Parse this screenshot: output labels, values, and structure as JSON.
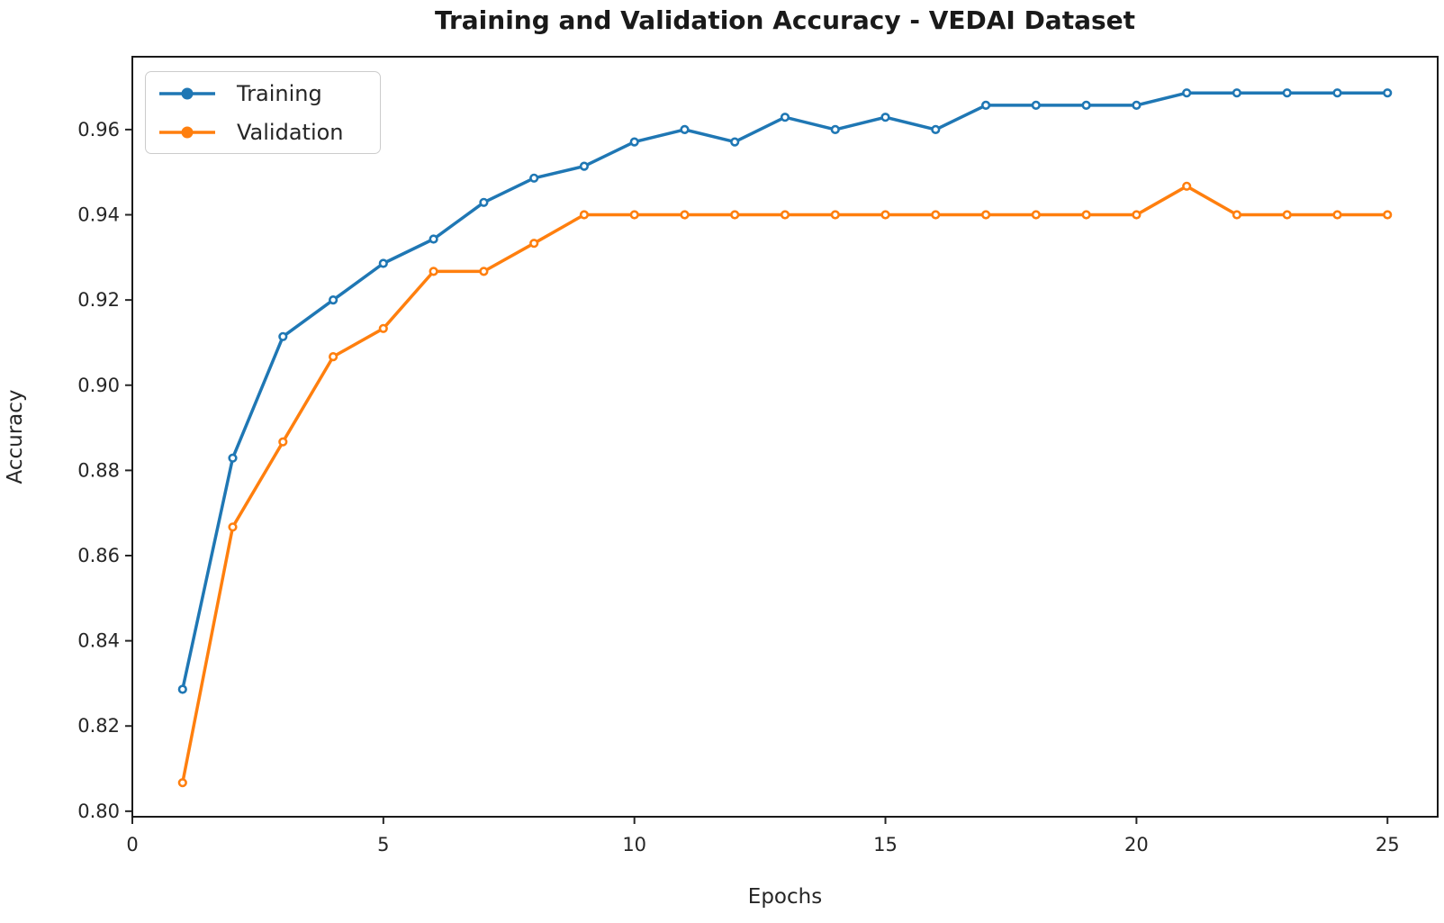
{
  "chart": {
    "title": "Training and Validation Accuracy - VEDAI Dataset",
    "xlabel": "Epochs",
    "ylabel": "Accuracy"
  },
  "chart_data": {
    "type": "line",
    "title": "Training and Validation Accuracy - VEDAI Dataset",
    "xlabel": "Epochs",
    "ylabel": "Accuracy",
    "x": [
      1,
      2,
      3,
      4,
      5,
      6,
      7,
      8,
      9,
      10,
      11,
      12,
      13,
      14,
      15,
      16,
      17,
      18,
      19,
      20,
      21,
      22,
      23,
      24,
      25
    ],
    "series": [
      {
        "name": "Training",
        "color": "#1f77b4",
        "values": [
          0.8286,
          0.8829,
          0.9114,
          0.92,
          0.9286,
          0.9343,
          0.9429,
          0.9486,
          0.9514,
          0.9571,
          0.96,
          0.9571,
          0.9629,
          0.96,
          0.9629,
          0.96,
          0.9657,
          0.9657,
          0.9657,
          0.9657,
          0.9686,
          0.9686,
          0.9686,
          0.9686,
          0.9686
        ]
      },
      {
        "name": "Validation",
        "color": "#ff7f0e",
        "values": [
          0.8067,
          0.8667,
          0.8867,
          0.9067,
          0.9133,
          0.9267,
          0.9267,
          0.9333,
          0.94,
          0.94,
          0.94,
          0.94,
          0.94,
          0.94,
          0.94,
          0.94,
          0.94,
          0.94,
          0.94,
          0.94,
          0.9467,
          0.94,
          0.94,
          0.94,
          0.94
        ]
      }
    ],
    "xlim": [
      0,
      26
    ],
    "ylim": [
      0.7987,
      0.9771
    ],
    "xticks": [
      0,
      5,
      10,
      15,
      20,
      25
    ],
    "yticks": [
      0.8,
      0.82,
      0.84,
      0.86,
      0.88,
      0.9,
      0.92,
      0.94,
      0.96
    ],
    "legend_position": "upper-left",
    "grid": false,
    "marker": "o",
    "axis_color": "#1a1a1a",
    "tick_color": "#262626"
  }
}
